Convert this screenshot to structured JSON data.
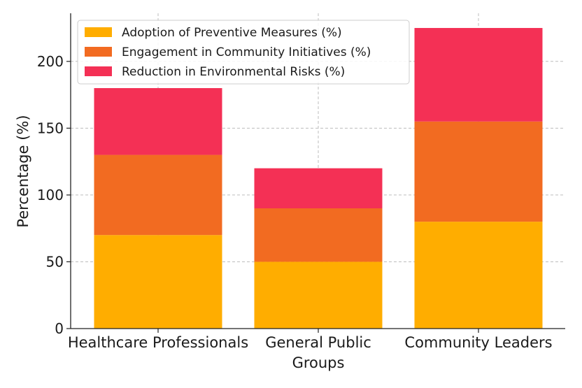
{
  "chart_data": {
    "type": "bar",
    "stacked": true,
    "title": "",
    "xlabel": "Groups",
    "ylabel": "Percentage (%)",
    "categories": [
      "Healthcare Professionals",
      "General Public",
      "Community Leaders"
    ],
    "series": [
      {
        "name": "Adoption of Preventive Measures (%)",
        "values": [
          70,
          50,
          80
        ],
        "color": "#ffad00"
      },
      {
        "name": "Engagement in Community Initiatives (%)",
        "values": [
          60,
          40,
          75
        ],
        "color": "#f26b21"
      },
      {
        "name": "Reduction in Environmental Risks (%)",
        "values": [
          50,
          30,
          70
        ],
        "color": "#f43055"
      }
    ],
    "yticks": [
      0,
      50,
      100,
      150,
      200
    ],
    "ylim": [
      0,
      236
    ],
    "grid": true,
    "legend_position": "top-left"
  }
}
